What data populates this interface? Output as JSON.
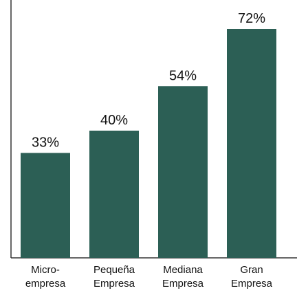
{
  "chart_data": {
    "type": "bar",
    "categories": [
      [
        "Micro-",
        "empresa"
      ],
      [
        "Pequeña",
        "Empresa"
      ],
      [
        "Mediana",
        "Empresa"
      ],
      [
        "Gran",
        "Empresa"
      ]
    ],
    "values": [
      33,
      40,
      54,
      72
    ],
    "value_labels": [
      "33%",
      "40%",
      "54%",
      "72%"
    ],
    "title": "",
    "xlabel": "",
    "ylabel": "",
    "ylim": [
      0,
      72
    ],
    "grid": false,
    "bar_color": "#2c5f55",
    "axis_color": "#333333"
  }
}
